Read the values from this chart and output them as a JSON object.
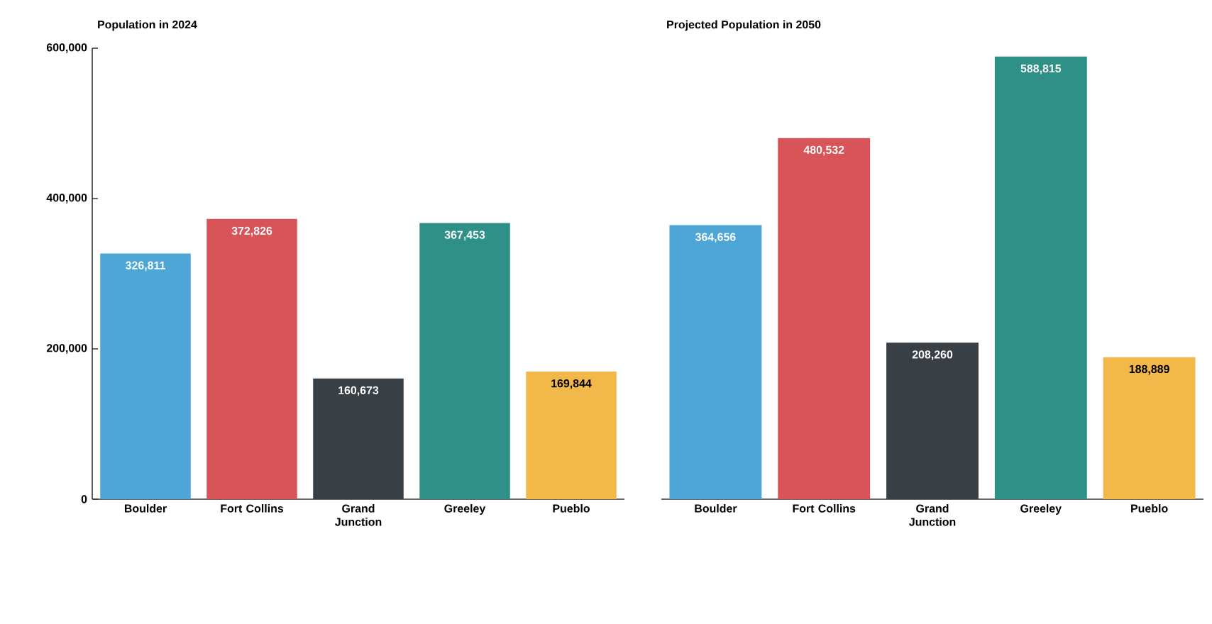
{
  "chart_data": [
    {
      "type": "bar",
      "title": "Population in 2024",
      "categories": [
        "Boulder",
        "Fort Collins",
        "Grand Junction",
        "Greeley",
        "Pueblo"
      ],
      "values": [
        326811,
        372826,
        160673,
        367453,
        169844
      ],
      "value_labels": [
        "326,811",
        "372,826",
        "160,673",
        "367,453",
        "169,844"
      ],
      "colors": [
        "#4da6d6",
        "#d95459",
        "#383f45",
        "#2e9086",
        "#f2b84a"
      ],
      "ylim": [
        0,
        600000
      ],
      "yticks": [
        {
          "value": 0,
          "label": "0"
        },
        {
          "value": 200000,
          "label": "200,000"
        },
        {
          "value": 400000,
          "label": "400,000"
        },
        {
          "value": 600000,
          "label": "600,000"
        }
      ]
    },
    {
      "type": "bar",
      "title": "Projected Population in 2050",
      "categories": [
        "Boulder",
        "Fort Collins",
        "Grand Junction",
        "Greeley",
        "Pueblo"
      ],
      "values": [
        364656,
        480532,
        208260,
        588815,
        188889
      ],
      "value_labels": [
        "364,656",
        "480,532",
        "208,260",
        "588,815",
        "188,889"
      ],
      "colors": [
        "#4da6d6",
        "#d95459",
        "#383f45",
        "#2e9086",
        "#f2b84a"
      ],
      "ylim": [
        0,
        600000
      ],
      "tick_labels": "x"
    }
  ]
}
